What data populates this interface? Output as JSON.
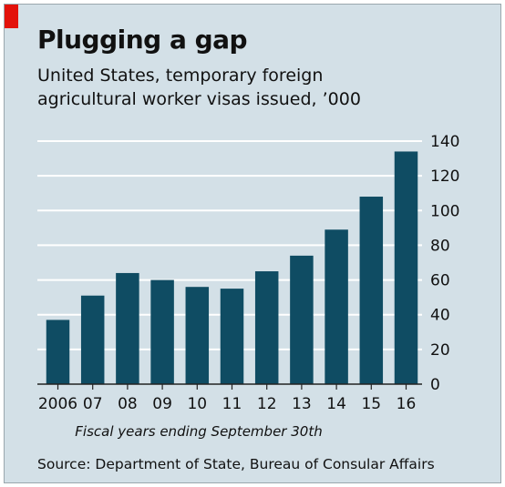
{
  "title": "Plugging a gap",
  "subtitle": "United States, temporary foreign agricultural worker visas issued, ’000",
  "footnote": "Fiscal years ending September 30th",
  "source": "Source: Department of State, Bureau of Consular Affairs",
  "colors": {
    "bar": "#0f4c63",
    "background": "#d3e0e7",
    "grid": "#ffffff",
    "accent": "#e3120b"
  },
  "chart_data": {
    "type": "bar",
    "categories": [
      "2006",
      "07",
      "08",
      "09",
      "10",
      "11",
      "12",
      "13",
      "14",
      "15",
      "16"
    ],
    "values": [
      37,
      51,
      64,
      60,
      56,
      55,
      65,
      74,
      89,
      108,
      134
    ],
    "yticks": [
      0,
      20,
      40,
      60,
      80,
      100,
      120,
      140
    ],
    "ylim": [
      0,
      140
    ],
    "y_axis_side": "right",
    "grid": true,
    "xlabel": "Fiscal years ending September 30th",
    "ylabel": ""
  }
}
